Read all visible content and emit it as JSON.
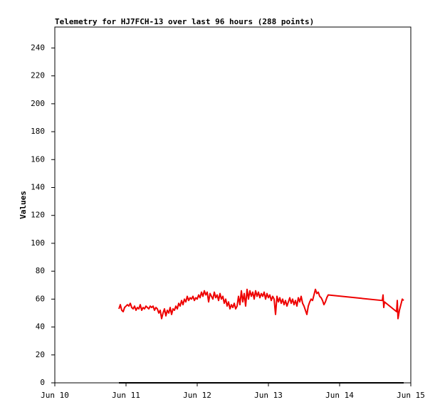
{
  "chart_data": {
    "type": "line",
    "title": "Telemetry for HJ7FCH-13 over last 96 hours (288 points)",
    "ylabel": "Values",
    "xlim": [
      10,
      15
    ],
    "xticks": [
      {
        "value": 10,
        "label": "Jun 10"
      },
      {
        "value": 11,
        "label": "Jun 11"
      },
      {
        "value": 12,
        "label": "Jun 12"
      },
      {
        "value": 13,
        "label": "Jun 13"
      },
      {
        "value": 14,
        "label": "Jun 14"
      },
      {
        "value": 15,
        "label": "Jun 15"
      }
    ],
    "ylim": [
      0,
      255
    ],
    "yticks": [
      0,
      20,
      40,
      60,
      80,
      100,
      120,
      140,
      160,
      180,
      200,
      220,
      240
    ],
    "grid": false,
    "series": [
      {
        "color": "#ee0000",
        "x": [
          10.9,
          10.92,
          10.94,
          10.96,
          10.98,
          11.0,
          11.02,
          11.04,
          11.06,
          11.08,
          11.1,
          11.12,
          11.14,
          11.16,
          11.18,
          11.2,
          11.22,
          11.24,
          11.26,
          11.28,
          11.3,
          11.32,
          11.34,
          11.36,
          11.38,
          11.4,
          11.42,
          11.44,
          11.46,
          11.48,
          11.5,
          11.52,
          11.54,
          11.56,
          11.58,
          11.6,
          11.62,
          11.64,
          11.66,
          11.68,
          11.7,
          11.72,
          11.74,
          11.76,
          11.78,
          11.8,
          11.82,
          11.84,
          11.86,
          11.88,
          11.9,
          11.92,
          11.94,
          11.96,
          11.98,
          12.0,
          12.02,
          12.04,
          12.06,
          12.08,
          12.1,
          12.12,
          12.14,
          12.16,
          12.18,
          12.2,
          12.22,
          12.24,
          12.26,
          12.28,
          12.3,
          12.32,
          12.34,
          12.36,
          12.38,
          12.4,
          12.42,
          12.44,
          12.46,
          12.48,
          12.5,
          12.52,
          12.54,
          12.56,
          12.58,
          12.6,
          12.62,
          12.64,
          12.66,
          12.68,
          12.7,
          12.72,
          12.74,
          12.76,
          12.78,
          12.8,
          12.82,
          12.84,
          12.86,
          12.88,
          12.9,
          12.92,
          12.94,
          12.96,
          12.98,
          13.0,
          13.02,
          13.04,
          13.06,
          13.08,
          13.1,
          13.12,
          13.14,
          13.16,
          13.18,
          13.2,
          13.22,
          13.24,
          13.26,
          13.28,
          13.3,
          13.32,
          13.34,
          13.36,
          13.38,
          13.4,
          13.42,
          13.44,
          13.46,
          13.48,
          13.5,
          13.52,
          13.54,
          13.56,
          13.58,
          13.6,
          13.62,
          13.64,
          13.66,
          13.68,
          13.7,
          13.72,
          13.74,
          13.76,
          13.78,
          13.8,
          13.82,
          13.84,
          14.6,
          14.61,
          14.62,
          14.63,
          14.8,
          14.81,
          14.82,
          14.84,
          14.86,
          14.88,
          14.9
        ],
        "values": [
          53,
          56,
          52,
          51,
          54,
          55,
          56,
          55,
          57,
          54,
          53,
          55,
          52,
          54,
          53,
          56,
          52,
          54,
          53,
          55,
          54,
          53,
          55,
          54,
          55,
          52,
          54,
          53,
          50,
          52,
          46,
          50,
          53,
          48,
          52,
          50,
          54,
          49,
          53,
          52,
          55,
          53,
          57,
          55,
          59,
          56,
          60,
          58,
          62,
          59,
          61,
          60,
          62,
          59,
          61,
          60,
          63,
          61,
          65,
          62,
          66,
          63,
          65,
          58,
          64,
          62,
          60,
          65,
          61,
          63,
          59,
          64,
          60,
          62,
          57,
          60,
          55,
          58,
          53,
          56,
          54,
          57,
          53,
          55,
          62,
          56,
          66,
          58,
          64,
          55,
          67,
          60,
          66,
          62,
          65,
          60,
          66,
          62,
          65,
          61,
          64,
          62,
          65,
          60,
          64,
          61,
          63,
          59,
          62,
          60,
          49,
          62,
          58,
          61,
          57,
          60,
          56,
          59,
          55,
          58,
          61,
          57,
          60,
          56,
          59,
          55,
          61,
          58,
          62,
          57,
          55,
          52,
          49,
          55,
          58,
          60,
          59,
          63,
          67,
          64,
          65,
          62,
          61,
          59,
          56,
          58,
          61,
          63,
          59,
          63,
          54,
          58,
          51,
          59,
          46,
          52,
          56,
          60,
          59
        ]
      },
      {
        "color": "#000000",
        "x": [
          10.9,
          14.9
        ],
        "values": [
          0,
          0
        ]
      }
    ]
  }
}
